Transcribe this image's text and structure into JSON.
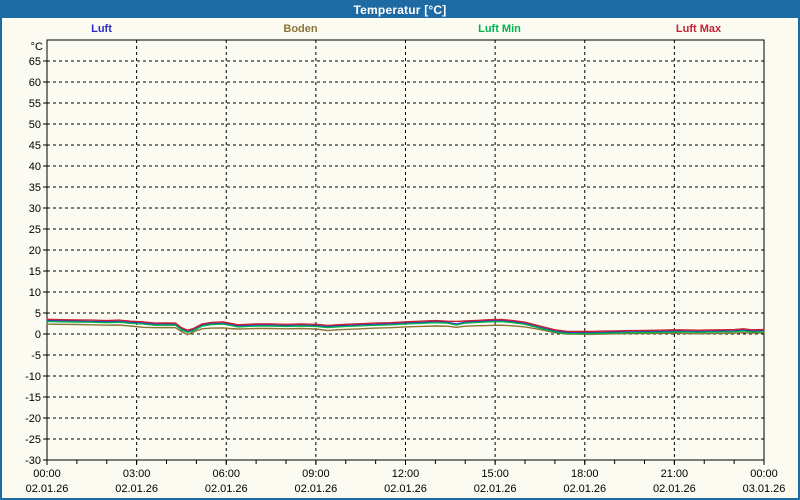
{
  "window": {
    "title": "Temperatur [°C]",
    "title_bar_color": "#1E6BA4",
    "border_color": "#1E6BA4",
    "background_color": "#FBFBF1"
  },
  "chart_data": {
    "type": "line",
    "title": "Temperatur [°C]",
    "grid": "dashed-black",
    "legend_position": "top",
    "y_axis": {
      "unit": "°C",
      "min": -30,
      "max": 70,
      "tick_step": 5,
      "tick_labels": [
        65,
        60,
        55,
        50,
        45,
        40,
        35,
        30,
        25,
        20,
        15,
        10,
        5,
        0,
        -5,
        -10,
        -15,
        -20,
        -25,
        -30
      ]
    },
    "x_axis": {
      "hours_span": 24,
      "major_tick_hours": 3,
      "minor_tick_hours": 1,
      "time_labels": [
        "00:00",
        "03:00",
        "06:00",
        "09:00",
        "12:00",
        "15:00",
        "18:00",
        "21:00",
        "00:00"
      ],
      "date_labels": [
        "02.01.26",
        "02.01.26",
        "02.01.26",
        "02.01.26",
        "02.01.26",
        "02.01.26",
        "02.01.26",
        "02.01.26",
        "03.01.26"
      ]
    },
    "x_hours": [
      0,
      0.5,
      1,
      1.5,
      2,
      2.4,
      2.8,
      3.2,
      3.6,
      4.0,
      4.3,
      4.5,
      4.7,
      4.9,
      5.2,
      5.5,
      5.9,
      6.1,
      6.4,
      7,
      7.5,
      8,
      8.5,
      9,
      9.4,
      9.7,
      10,
      10.5,
      11,
      11.5,
      12,
      12.5,
      13,
      13.4,
      13.7,
      14,
      14.4,
      14.8,
      15.2,
      15.6,
      16,
      16.5,
      17,
      17.4,
      17.8,
      18.2,
      18.6,
      19,
      19.5,
      20,
      20.5,
      21,
      21.4,
      21.8,
      22.2,
      22.6,
      23,
      23.3,
      23.6,
      24
    ],
    "series": [
      {
        "name": "Luft",
        "color": "#2D2DCE",
        "values": [
          3.2,
          3.1,
          3.05,
          3.0,
          2.9,
          3.0,
          2.75,
          2.6,
          2.3,
          2.35,
          2.3,
          1.2,
          0.6,
          1.0,
          2.1,
          2.45,
          2.55,
          2.3,
          1.9,
          2.1,
          2.1,
          2.0,
          2.1,
          2.0,
          1.75,
          1.9,
          2.0,
          2.15,
          2.3,
          2.4,
          2.6,
          2.75,
          2.9,
          2.8,
          2.35,
          2.8,
          2.95,
          3.1,
          3.15,
          2.9,
          2.5,
          1.6,
          0.7,
          0.35,
          0.3,
          0.3,
          0.4,
          0.45,
          0.5,
          0.55,
          0.6,
          0.7,
          0.65,
          0.6,
          0.65,
          0.7,
          0.75,
          0.95,
          0.7,
          0.75
        ]
      },
      {
        "name": "Boden",
        "color": "#8B7536",
        "values": [
          2.35,
          2.3,
          2.25,
          2.2,
          2.1,
          2.15,
          1.9,
          1.6,
          1.5,
          1.55,
          1.5,
          0.6,
          -0.2,
          0.5,
          1.25,
          1.4,
          1.45,
          1.3,
          1.2,
          1.3,
          1.3,
          1.25,
          1.3,
          1.2,
          0.8,
          1.0,
          1.1,
          1.25,
          1.4,
          1.5,
          1.7,
          1.8,
          1.9,
          1.85,
          1.6,
          1.85,
          1.95,
          2.05,
          2.1,
          1.95,
          1.7,
          1.1,
          0.3,
          0.0,
          -0.05,
          -0.1,
          0.0,
          0.05,
          0.1,
          0.1,
          0.15,
          0.2,
          0.1,
          0.05,
          0.1,
          0.15,
          0.2,
          0.3,
          0.2,
          0.3
        ]
      },
      {
        "name": "Luft Min",
        "color": "#00B450",
        "values": [
          3.0,
          2.9,
          2.85,
          2.8,
          2.7,
          2.8,
          2.55,
          2.4,
          2.1,
          2.15,
          2.1,
          1.0,
          0.4,
          0.8,
          1.9,
          2.25,
          2.35,
          2.1,
          1.7,
          1.9,
          1.9,
          1.8,
          1.9,
          1.8,
          1.55,
          1.7,
          1.8,
          1.95,
          2.1,
          2.2,
          2.4,
          2.55,
          2.7,
          2.6,
          2.15,
          2.6,
          2.75,
          2.9,
          2.95,
          2.7,
          2.3,
          1.4,
          0.5,
          0.15,
          0.1,
          0.1,
          0.2,
          0.25,
          0.3,
          0.35,
          0.4,
          0.5,
          0.45,
          0.4,
          0.45,
          0.5,
          0.55,
          0.75,
          0.5,
          0.55
        ]
      },
      {
        "name": "Luft Max",
        "color": "#C52234",
        "values": [
          3.5,
          3.4,
          3.35,
          3.3,
          3.2,
          3.3,
          3.05,
          2.9,
          2.6,
          2.65,
          2.6,
          1.5,
          0.9,
          1.3,
          2.4,
          2.75,
          2.85,
          2.6,
          2.2,
          2.4,
          2.4,
          2.3,
          2.4,
          2.3,
          2.05,
          2.2,
          2.3,
          2.45,
          2.6,
          2.7,
          2.9,
          3.05,
          3.2,
          3.05,
          3.0,
          3.1,
          3.25,
          3.4,
          3.45,
          3.2,
          2.8,
          1.9,
          1.0,
          0.65,
          0.6,
          0.6,
          0.7,
          0.75,
          0.8,
          0.85,
          0.9,
          1.0,
          0.95,
          0.9,
          0.95,
          1.0,
          1.05,
          1.25,
          1.0,
          1.05
        ]
      }
    ]
  }
}
